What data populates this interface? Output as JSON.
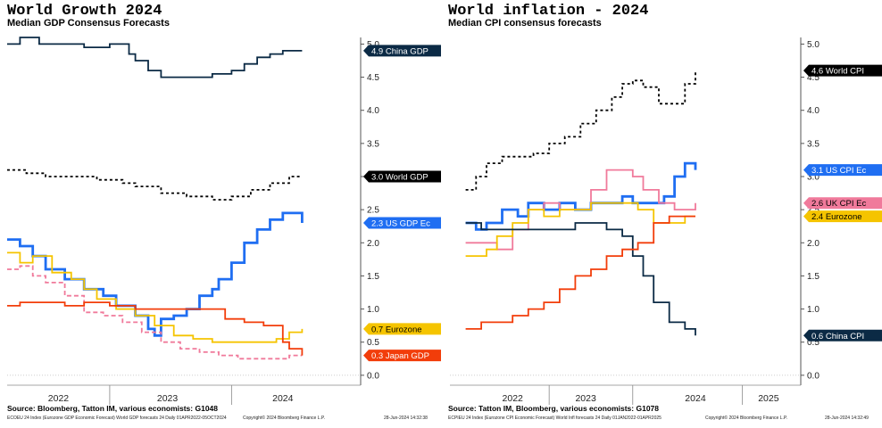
{
  "charts": [
    {
      "title": "World Growth 2024",
      "subtitle": "Median GDP Consensus Forecasts",
      "source": "Source: Bloomberg, Tatton IM, various economists: G1048",
      "footer_left": "ECOEU 24 Index (Eurozone GDP Economic Forecast) World GDP forecasts 24  Daily 01APR2022-05OCT2024",
      "footer_mid": "Copyright© 2024 Bloomberg Finance L.P.",
      "footer_right": "28-Jun-2024 14:32:38"
    },
    {
      "title": "World inflation - 2024",
      "subtitle": "Median CPI consensus forecasts",
      "source": "Source: Tatton IM, Bloomberg, various economists: G1078",
      "footer_left": "ECPIEU 24 Index (Eurozone CPI Economic Forecast) World Infl forecasts 24  Daily 01JAN2022-01APR2025",
      "footer_mid": "Copyright© 2024 Bloomberg Finance L.P.",
      "footer_right": "28-Jun-2024 14:32:49"
    }
  ],
  "chart_data": [
    {
      "type": "line",
      "title": "World Growth 2024",
      "subtitle": "Median GDP Consensus Forecasts",
      "x_tick_labels": [
        "2022",
        "2023",
        "2024"
      ],
      "y_ticks": [
        "5.0",
        "4.5",
        "4.0",
        "3.5",
        "3.0",
        "2.5",
        "2.0",
        "1.5",
        "1.0",
        "0.5",
        "0.0"
      ],
      "ylim": [
        -0.15,
        5.1
      ],
      "xlim": [
        2022.0,
        2024.75
      ],
      "grid": false,
      "series": [
        {
          "name": "China GDP",
          "last": "4.9",
          "color": "#0b2a45",
          "dash": "solid",
          "x": [
            2022.0,
            2022.1,
            2022.25,
            2022.4,
            2022.6,
            2022.8,
            2022.95,
            2023.0,
            2023.1,
            2023.2,
            2023.3,
            2023.45,
            2023.6,
            2023.75,
            2023.85,
            2023.95,
            2024.05,
            2024.15,
            2024.3
          ],
          "y": [
            5.0,
            5.1,
            5.0,
            5.0,
            4.95,
            5.0,
            4.85,
            4.75,
            4.6,
            4.5,
            4.5,
            4.5,
            4.55,
            4.6,
            4.7,
            4.8,
            4.85,
            4.9,
            4.9
          ]
        },
        {
          "name": "World GDP",
          "last": "3.0",
          "color": "#000000",
          "dash": "dotted",
          "x": [
            2022.0,
            2022.15,
            2022.3,
            2022.5,
            2022.7,
            2022.9,
            2023.0,
            2023.2,
            2023.4,
            2023.6,
            2023.75,
            2023.9,
            2024.05,
            2024.2,
            2024.3
          ],
          "y": [
            3.1,
            3.05,
            3.0,
            3.0,
            2.95,
            2.9,
            2.85,
            2.75,
            2.7,
            2.65,
            2.7,
            2.8,
            2.9,
            3.0,
            3.0
          ]
        },
        {
          "name": "US GDP Ec",
          "last": "2.3",
          "color": "#1f6ef2",
          "dash": "solid",
          "x": [
            2022.0,
            2022.1,
            2022.2,
            2022.3,
            2022.45,
            2022.6,
            2022.75,
            2022.85,
            2023.0,
            2023.1,
            2023.15,
            2023.2,
            2023.3,
            2023.4,
            2023.5,
            2023.6,
            2023.65,
            2023.75,
            2023.85,
            2023.95,
            2024.05,
            2024.15,
            2024.3
          ],
          "y": [
            2.05,
            1.95,
            1.8,
            1.6,
            1.45,
            1.3,
            1.2,
            1.05,
            0.9,
            0.7,
            0.6,
            0.85,
            0.9,
            1.0,
            1.2,
            1.3,
            1.45,
            1.7,
            2.0,
            2.2,
            2.35,
            2.45,
            2.3
          ]
        },
        {
          "name": "Eurozone",
          "last": "0.7",
          "color": "#f5c400",
          "dash": "solid",
          "x": [
            2022.0,
            2022.1,
            2022.2,
            2022.35,
            2022.5,
            2022.6,
            2022.7,
            2022.85,
            2023.0,
            2023.15,
            2023.3,
            2023.45,
            2023.6,
            2023.8,
            2023.95,
            2024.1,
            2024.2,
            2024.3
          ],
          "y": [
            1.85,
            1.7,
            1.8,
            1.55,
            1.45,
            1.3,
            1.15,
            1.0,
            0.9,
            0.75,
            0.6,
            0.55,
            0.5,
            0.5,
            0.5,
            0.55,
            0.65,
            0.7
          ]
        },
        {
          "name": "UK GDP (dashed)",
          "last": "",
          "color": "#f07a9b",
          "dash": "dashed",
          "x": [
            2022.0,
            2022.1,
            2022.2,
            2022.3,
            2022.45,
            2022.6,
            2022.75,
            2022.9,
            2023.05,
            2023.2,
            2023.35,
            2023.5,
            2023.65,
            2023.8,
            2023.95,
            2024.1,
            2024.2,
            2024.3
          ],
          "y": [
            1.6,
            1.65,
            1.5,
            1.4,
            1.2,
            0.95,
            0.9,
            0.8,
            0.65,
            0.5,
            0.4,
            0.35,
            0.3,
            0.25,
            0.25,
            0.25,
            0.3,
            0.3
          ]
        },
        {
          "name": "Japan GDP",
          "last": "0.3",
          "color": "#f23d0a",
          "dash": "solid",
          "x": [
            2022.0,
            2022.1,
            2022.25,
            2022.45,
            2022.6,
            2022.8,
            2023.0,
            2023.2,
            2023.4,
            2023.55,
            2023.7,
            2023.85,
            2024.0,
            2024.1,
            2024.15,
            2024.2,
            2024.3
          ],
          "y": [
            1.05,
            1.1,
            1.1,
            1.05,
            1.1,
            1.05,
            1.0,
            1.0,
            1.0,
            1.0,
            0.85,
            0.8,
            0.75,
            0.75,
            0.5,
            0.4,
            0.3
          ]
        }
      ]
    },
    {
      "type": "line",
      "title": "World inflation - 2024",
      "subtitle": "Median CPI consensus forecasts",
      "x_tick_labels": [
        "2022",
        "2023",
        "2024",
        "2025"
      ],
      "y_ticks": [
        "5.0",
        "4.5",
        "4.0",
        "3.5",
        "3.0",
        "2.5",
        "2.0",
        "1.5",
        "1.0",
        "0.5",
        "0.0"
      ],
      "ylim": [
        -0.15,
        5.1
      ],
      "xlim": [
        2021.85,
        2025.2
      ],
      "grid": false,
      "series": [
        {
          "name": "World CPI",
          "last": "4.6",
          "color": "#000000",
          "dash": "dotted",
          "x": [
            2022.0,
            2022.1,
            2022.2,
            2022.35,
            2022.5,
            2022.65,
            2022.8,
            2022.95,
            2023.1,
            2023.25,
            2023.4,
            2023.5,
            2023.6,
            2023.7,
            2023.85,
            2024.0,
            2024.1,
            2024.2
          ],
          "y": [
            2.8,
            3.0,
            3.2,
            3.3,
            3.3,
            3.35,
            3.5,
            3.6,
            3.8,
            4.0,
            4.2,
            4.4,
            4.45,
            4.35,
            4.1,
            4.1,
            4.4,
            4.6
          ]
        },
        {
          "name": "US CPI Ec",
          "last": "3.1",
          "color": "#1f6ef2",
          "dash": "solid",
          "x": [
            2022.0,
            2022.1,
            2022.2,
            2022.35,
            2022.5,
            2022.6,
            2022.75,
            2022.9,
            2023.05,
            2023.2,
            2023.35,
            2023.5,
            2023.6,
            2023.75,
            2023.9,
            2024.0,
            2024.1,
            2024.2
          ],
          "y": [
            2.3,
            2.2,
            2.3,
            2.5,
            2.4,
            2.6,
            2.5,
            2.6,
            2.5,
            2.6,
            2.6,
            2.7,
            2.6,
            2.6,
            2.7,
            3.0,
            3.2,
            3.1
          ]
        },
        {
          "name": "UK CPI Ec",
          "last": "2.6",
          "color": "#f07a9b",
          "dash": "solid",
          "x": [
            2022.0,
            2022.15,
            2022.3,
            2022.45,
            2022.6,
            2022.75,
            2022.9,
            2023.05,
            2023.2,
            2023.35,
            2023.5,
            2023.6,
            2023.7,
            2023.85,
            2024.0,
            2024.1,
            2024.2
          ],
          "y": [
            2.0,
            2.0,
            1.9,
            2.2,
            2.5,
            2.6,
            2.5,
            2.5,
            2.8,
            3.1,
            3.1,
            3.0,
            2.8,
            2.6,
            2.5,
            2.5,
            2.6
          ]
        },
        {
          "name": "Eurozone",
          "last": "2.4",
          "color": "#f5c400",
          "dash": "solid",
          "x": [
            2022.0,
            2022.1,
            2022.2,
            2022.3,
            2022.45,
            2022.6,
            2022.75,
            2022.9,
            2023.05,
            2023.2,
            2023.35,
            2023.5,
            2023.65,
            2023.8,
            2023.95,
            2024.1,
            2024.2
          ],
          "y": [
            1.8,
            1.8,
            1.9,
            2.1,
            2.3,
            2.5,
            2.4,
            2.5,
            2.5,
            2.6,
            2.6,
            2.6,
            2.5,
            2.3,
            2.3,
            2.4,
            2.4
          ]
        },
        {
          "name": "China CPI",
          "last": "0.6",
          "color": "#0b2a45",
          "dash": "solid",
          "x": [
            2022.0,
            2022.15,
            2022.3,
            2022.45,
            2022.6,
            2022.75,
            2022.9,
            2023.05,
            2023.2,
            2023.35,
            2023.5,
            2023.6,
            2023.7,
            2023.8,
            2023.95,
            2024.1,
            2024.2
          ],
          "y": [
            2.3,
            2.2,
            2.2,
            2.2,
            2.2,
            2.2,
            2.2,
            2.3,
            2.3,
            2.2,
            2.1,
            1.8,
            1.5,
            1.1,
            0.8,
            0.7,
            0.6
          ]
        },
        {
          "name": "Eurozone CPI (red)",
          "last": "",
          "color": "#f23d0a",
          "dash": "solid",
          "x": [
            2022.0,
            2022.15,
            2022.3,
            2022.45,
            2022.6,
            2022.75,
            2022.9,
            2023.05,
            2023.2,
            2023.35,
            2023.5,
            2023.65,
            2023.8,
            2023.95,
            2024.1,
            2024.2
          ],
          "y": [
            0.7,
            0.8,
            0.8,
            0.9,
            1.0,
            1.1,
            1.3,
            1.5,
            1.6,
            1.8,
            1.9,
            2.0,
            2.3,
            2.4,
            2.4,
            2.4
          ]
        }
      ]
    }
  ]
}
